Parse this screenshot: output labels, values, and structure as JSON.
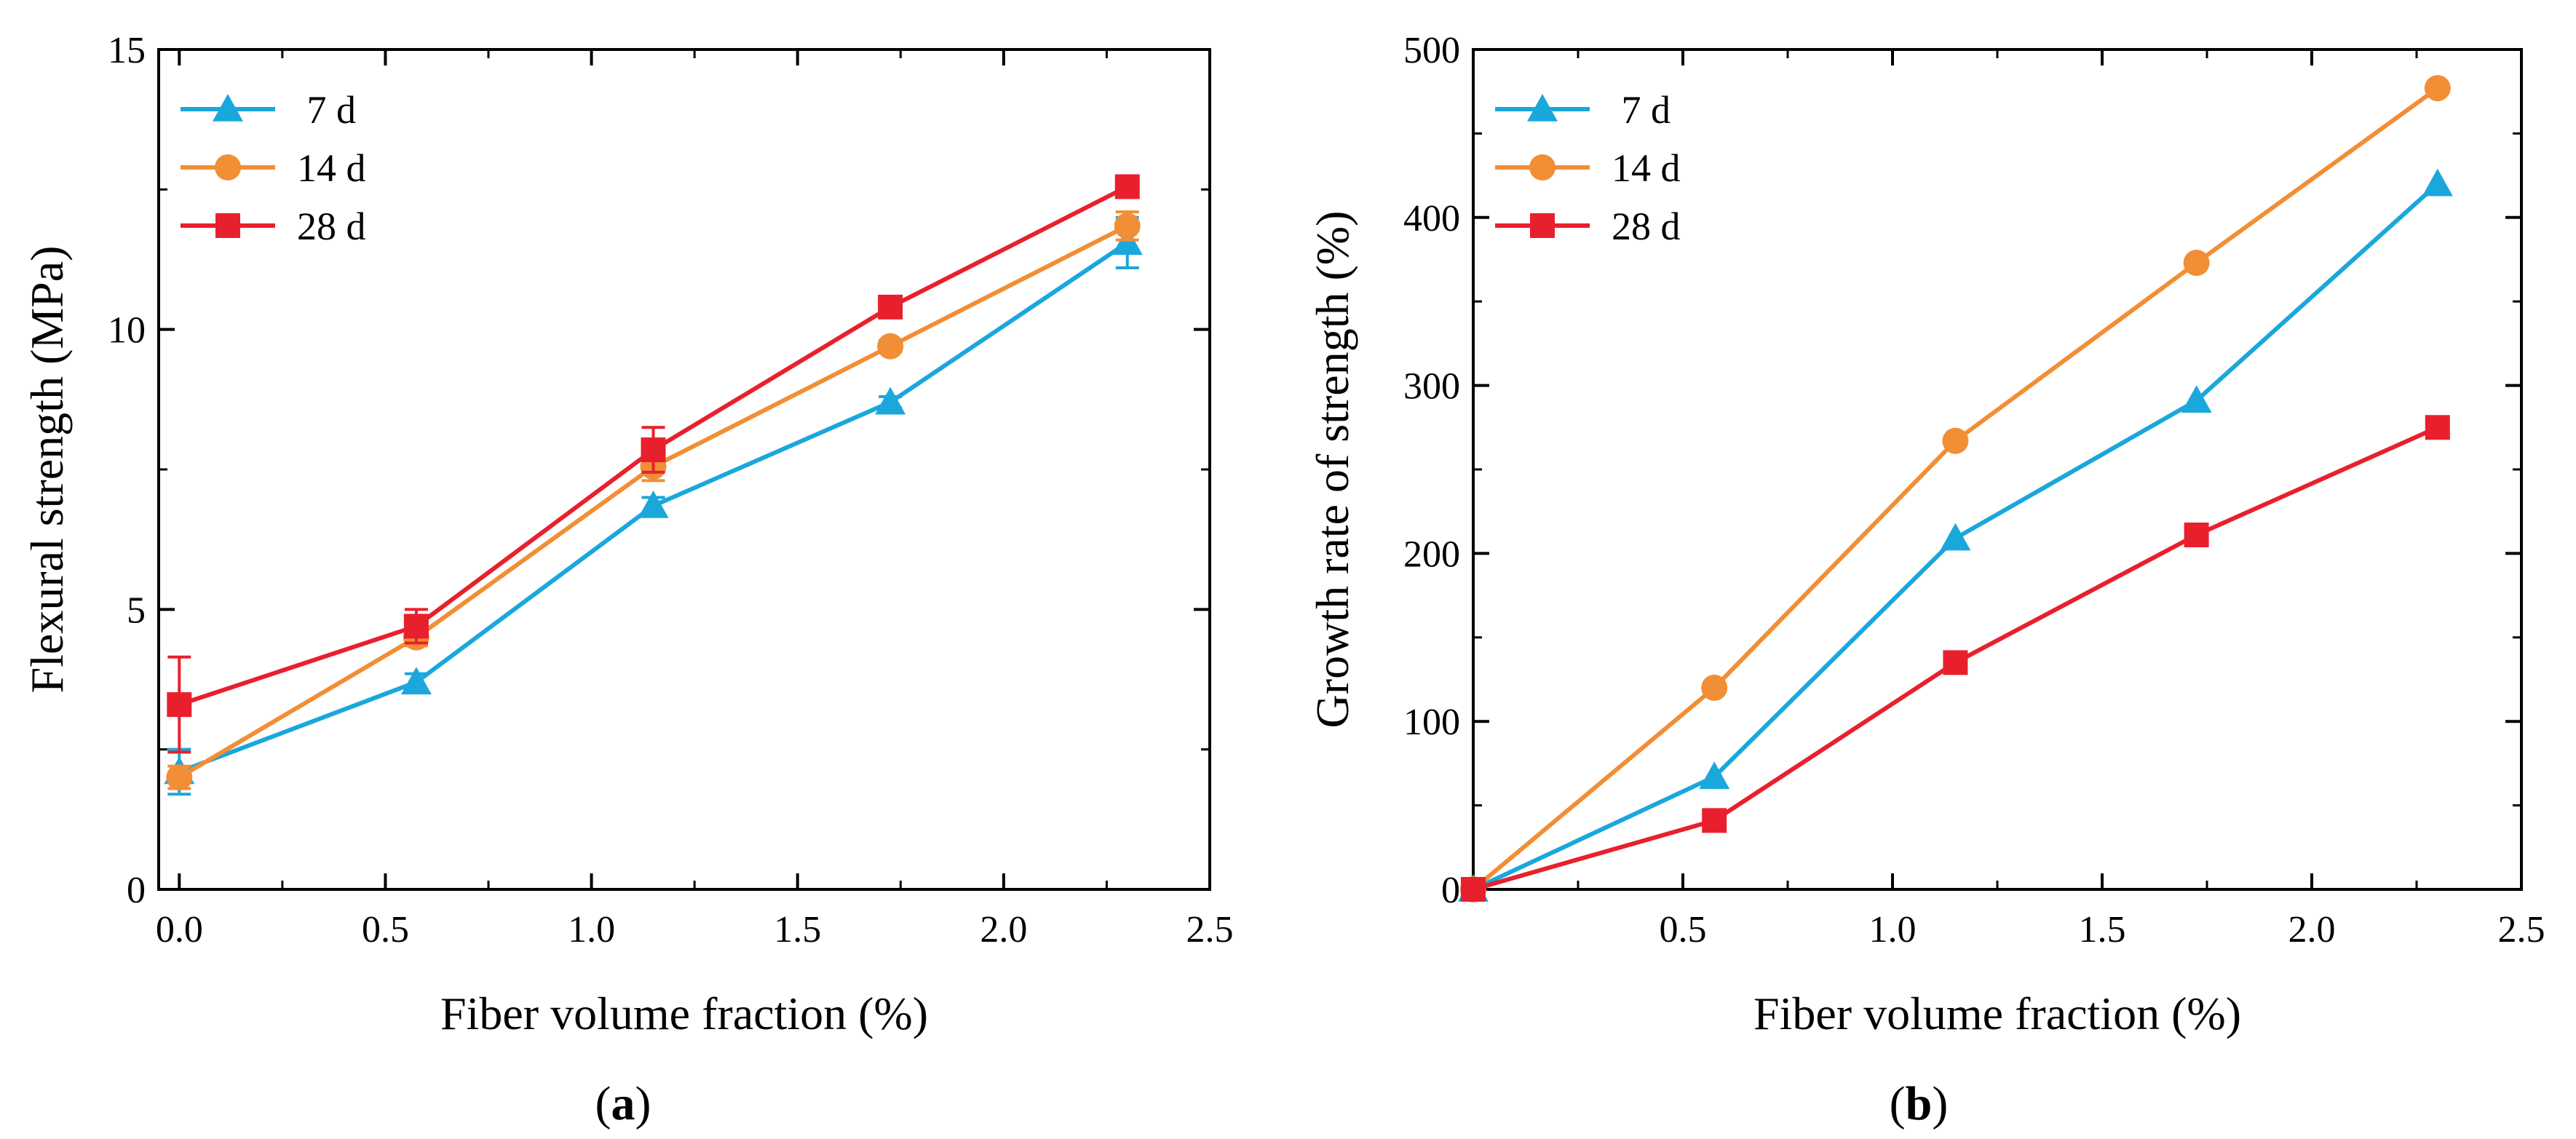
{
  "panels": [
    {
      "caption_open": "(",
      "caption_letter": "a",
      "caption_close": ")"
    },
    {
      "caption_open": "(",
      "caption_letter": "b",
      "caption_close": ")"
    }
  ],
  "chart_data": [
    {
      "type": "line",
      "xlabel": "Fiber volume fraction (%)",
      "ylabel": "Flexural strength (MPa)",
      "xlim": [
        -0.05,
        2.5
      ],
      "ylim": [
        0,
        15
      ],
      "xticks": [
        0.0,
        0.5,
        1.0,
        1.5,
        2.0,
        2.5
      ],
      "xtick_labels": [
        "0.0",
        "0.5",
        "1.0",
        "1.5",
        "2.0",
        "2.5"
      ],
      "yticks": [
        0,
        5,
        10,
        15
      ],
      "ytick_labels": [
        "0",
        "5",
        "10",
        "15"
      ],
      "x": [
        0.0,
        0.575,
        1.15,
        1.725,
        2.3
      ],
      "legend_position": "top-left",
      "series": [
        {
          "name": " 7 d",
          "color": "#1aa7dc",
          "marker": "triangle",
          "values": [
            2.1,
            3.7,
            6.85,
            8.7,
            11.55
          ],
          "errors": [
            0.4,
            0.15,
            0.15,
            0.1,
            0.45
          ]
        },
        {
          "name": "14 d",
          "color": "#f28e35",
          "marker": "circle",
          "values": [
            2.0,
            4.5,
            7.55,
            9.7,
            11.85
          ],
          "errors": [
            0.2,
            0.15,
            0.25,
            0.1,
            0.25
          ]
        },
        {
          "name": "28 d",
          "color": "#e8202d",
          "marker": "square",
          "values": [
            3.3,
            4.7,
            7.85,
            10.4,
            12.55
          ],
          "errors": [
            0.85,
            0.3,
            0.4,
            0.1,
            0.1
          ]
        }
      ]
    },
    {
      "type": "line",
      "xlabel": "Fiber volume fraction (%)",
      "ylabel": "Growth rate of strength (%)",
      "xlim": [
        0,
        2.5
      ],
      "ylim": [
        0,
        500
      ],
      "xticks": [
        0.5,
        1.0,
        1.5,
        2.0,
        2.5
      ],
      "xtick_labels": [
        "0.5",
        "1.0",
        "1.5",
        "2.0",
        "2.5"
      ],
      "yticks": [
        0,
        100,
        200,
        300,
        400,
        500
      ],
      "ytick_labels": [
        "0",
        "100",
        "200",
        "300",
        "400",
        "500"
      ],
      "x": [
        0.0,
        0.575,
        1.15,
        1.725,
        2.3
      ],
      "legend_position": "top-left",
      "series": [
        {
          "name": " 7 d",
          "color": "#1aa7dc",
          "marker": "triangle",
          "values": [
            0,
            67,
            209,
            291,
            420
          ]
        },
        {
          "name": "14 d",
          "color": "#f28e35",
          "marker": "circle",
          "values": [
            0,
            120,
            267,
            373,
            477
          ]
        },
        {
          "name": "28 d",
          "color": "#e8202d",
          "marker": "square",
          "values": [
            0,
            41,
            135,
            211,
            275
          ]
        }
      ]
    }
  ]
}
